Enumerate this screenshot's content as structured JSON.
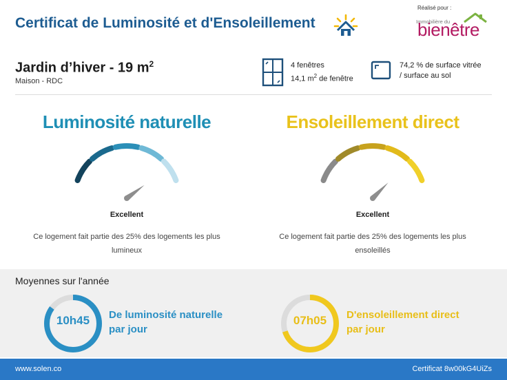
{
  "header": {
    "title": "Certificat de Luminosité et d'Ensoleillement",
    "title_icon": "sun-house-icon",
    "brand_by": "Réalisé pour :",
    "brand_small": "Immobilière du",
    "brand_name": "bienêtre"
  },
  "room": {
    "title": "Jardin d’hiver - 19 m",
    "title_sup": "2",
    "subtitle": "Maison - RDC",
    "windows_line1": "4 fenêtres",
    "windows_line2_pre": "14,1 m",
    "windows_line2_sup": "2",
    "windows_line2_post": " de fenêtre",
    "surface_line1": "74,2 % de surface vitrée",
    "surface_line2": " / surface au sol"
  },
  "gauges": [
    {
      "title": "Luminosité naturelle",
      "level": 0.88,
      "rating": "Excellent",
      "description": "Ce logement fait partie des 25% des logements les plus lumineux",
      "title_color": "#1f8fb5",
      "segment_colors": [
        "#13435c",
        "#1b6a8e",
        "#2b8fb8",
        "#6fb9d6",
        "#bfe0ee"
      ]
    },
    {
      "title": "Ensoleillement direct",
      "level": 0.82,
      "rating": "Excellent",
      "description": "Ce logement fait partie des 25% des logements les plus ensoleillés",
      "title_color": "#e9c21c",
      "segment_colors": [
        "#8a8a8a",
        "#a08a2a",
        "#c7a21e",
        "#e2ba1b",
        "#f0d02a"
      ]
    }
  ],
  "averages": {
    "heading": "Moyennes sur l'année",
    "light": {
      "value": "10h45",
      "label_line1": "De luminosité naturelle",
      "label_line2": "par jour",
      "fraction": 0.85,
      "color": "#2a8fc4"
    },
    "sun": {
      "value": "07h05",
      "label_line1": "D'ensoleillement direct",
      "label_line2": "par jour",
      "fraction": 0.7,
      "color": "#f0c81e"
    }
  },
  "footer": {
    "website": "www.solen.co",
    "certificate": "Certificat 8w00kG4UiZs"
  },
  "colors": {
    "header_blue": "#1d5c91",
    "brand_magenta": "#b31b62",
    "footer_blue": "#2a78c6",
    "ring_track": "#dcdcdc"
  }
}
